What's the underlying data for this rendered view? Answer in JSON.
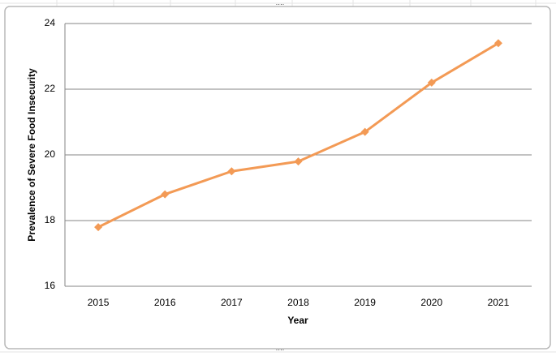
{
  "chart_data": {
    "type": "line",
    "x_label": "Year",
    "y_label": "Prevalence of Severe Food Insecurity",
    "categories": [
      "2015",
      "2016",
      "2017",
      "2018",
      "2019",
      "2020",
      "2021"
    ],
    "series": [
      {
        "color": "#f39a55",
        "values": [
          17.8,
          18.8,
          19.5,
          19.8,
          20.7,
          22.2,
          23.4
        ]
      }
    ],
    "ylim": [
      16,
      24
    ],
    "yticks": [
      16,
      18,
      20,
      22,
      24
    ],
    "grid": true
  }
}
